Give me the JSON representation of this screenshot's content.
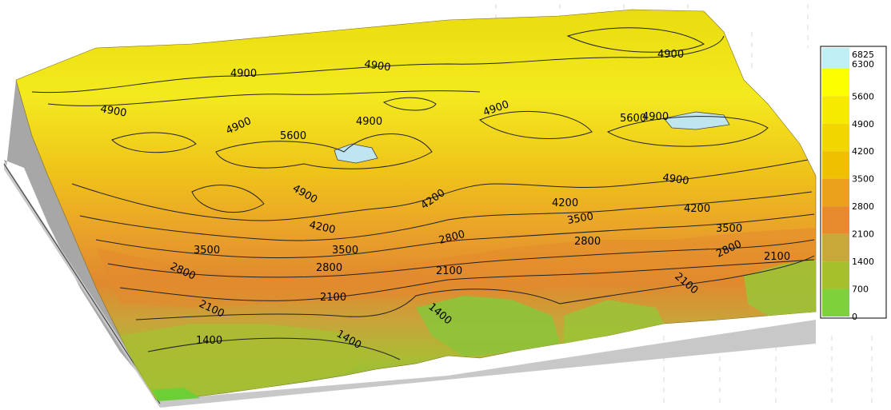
{
  "chart_data": {
    "type": "3d-surface",
    "title": "",
    "contour_levels": [
      700,
      1400,
      2100,
      2800,
      3500,
      4200,
      4900,
      5600,
      6300
    ],
    "legend": {
      "placement": "right",
      "ticks": [
        "6825",
        "6300",
        "5600",
        "4900",
        "4200",
        "3500",
        "2800",
        "2100",
        "1400",
        "700",
        "0"
      ],
      "bands": [
        {
          "from": 6300,
          "to": 6825,
          "color": "#bfeef5"
        },
        {
          "from": 5600,
          "to": 6300,
          "color": "#fbff00"
        },
        {
          "from": 4900,
          "to": 5600,
          "color": "#f5ea00"
        },
        {
          "from": 4200,
          "to": 4900,
          "color": "#f1d600"
        },
        {
          "from": 3500,
          "to": 4200,
          "color": "#eec000"
        },
        {
          "from": 2800,
          "to": 3500,
          "color": "#eaa11c"
        },
        {
          "from": 2100,
          "to": 2800,
          "color": "#e68a2b"
        },
        {
          "from": 1400,
          "to": 2100,
          "color": "#c9a83a"
        },
        {
          "from": 700,
          "to": 1400,
          "color": "#a6c02c"
        },
        {
          "from": 0,
          "to": 700,
          "color": "#7fd13c"
        }
      ]
    },
    "contour_labels": [
      "4900",
      "4900",
      "4900",
      "4900",
      "4900",
      "4900",
      "5600",
      "5600",
      "4900",
      "4900",
      "4900",
      "4900",
      "4200",
      "4200",
      "4200",
      "4200",
      "3500",
      "3500",
      "3500",
      "3500",
      "2800",
      "2800",
      "2800",
      "2800",
      "2800",
      "2100",
      "2100",
      "2100",
      "2100",
      "2100",
      "1400",
      "1400",
      "1400"
    ],
    "plateaus_above_6300": 2
  }
}
